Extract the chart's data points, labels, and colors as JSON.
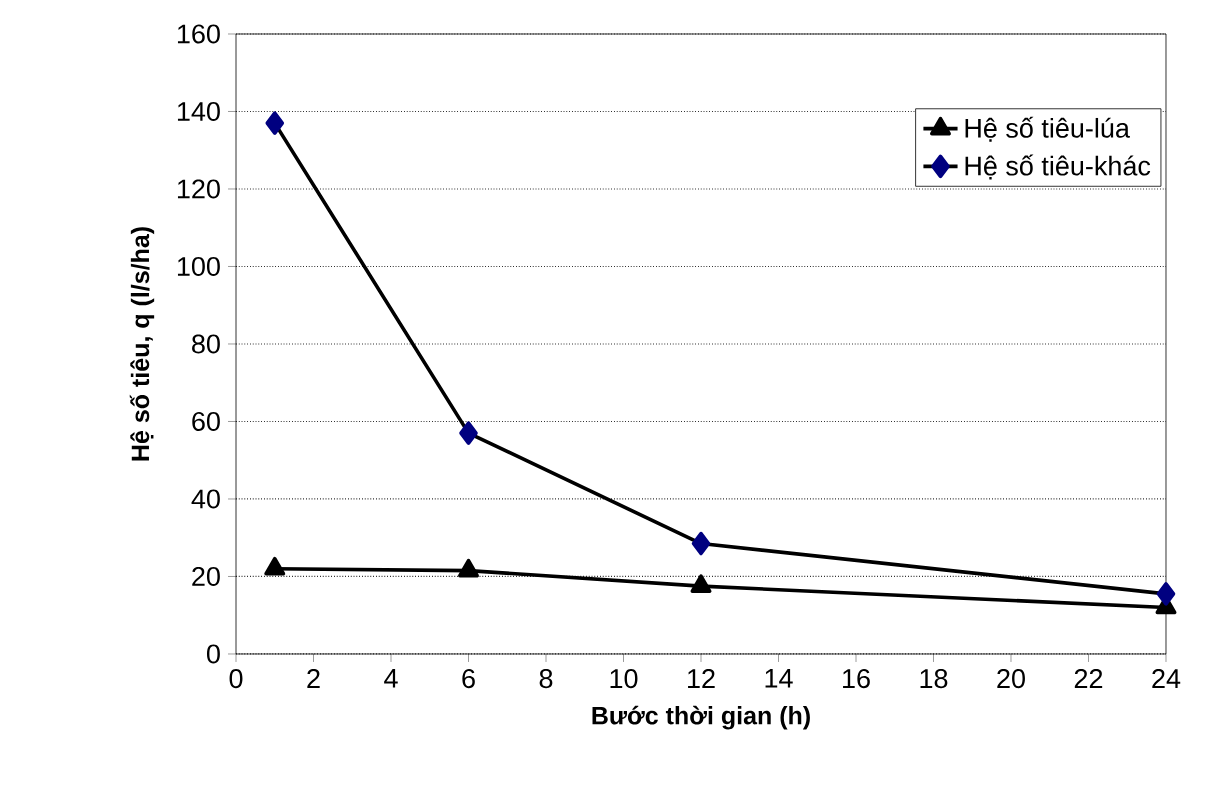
{
  "chart_data": {
    "type": "line",
    "xlabel": "Bước thời gian (h)",
    "ylabel": "Hệ số tiêu, q (l/s/ha)",
    "x": [
      1,
      6,
      12,
      24
    ],
    "series": [
      {
        "name": "Hệ số tiêu-lúa",
        "color": "#000000",
        "marker": "triangle",
        "values": [
          22,
          21.5,
          17.5,
          12
        ]
      },
      {
        "name": "Hệ số tiêu-khác",
        "color": "#000080",
        "marker": "diamond",
        "values": [
          137,
          57,
          28.5,
          15.5
        ]
      }
    ],
    "xlim": [
      0,
      24
    ],
    "xticks": [
      0,
      2,
      4,
      6,
      8,
      10,
      12,
      14,
      16,
      18,
      20,
      22,
      24
    ],
    "ylim": [
      0,
      160
    ],
    "yticks": [
      0,
      20,
      40,
      60,
      80,
      100,
      120,
      140,
      160
    ],
    "grid": "y",
    "legend": "top right",
    "line_style": "solid"
  }
}
